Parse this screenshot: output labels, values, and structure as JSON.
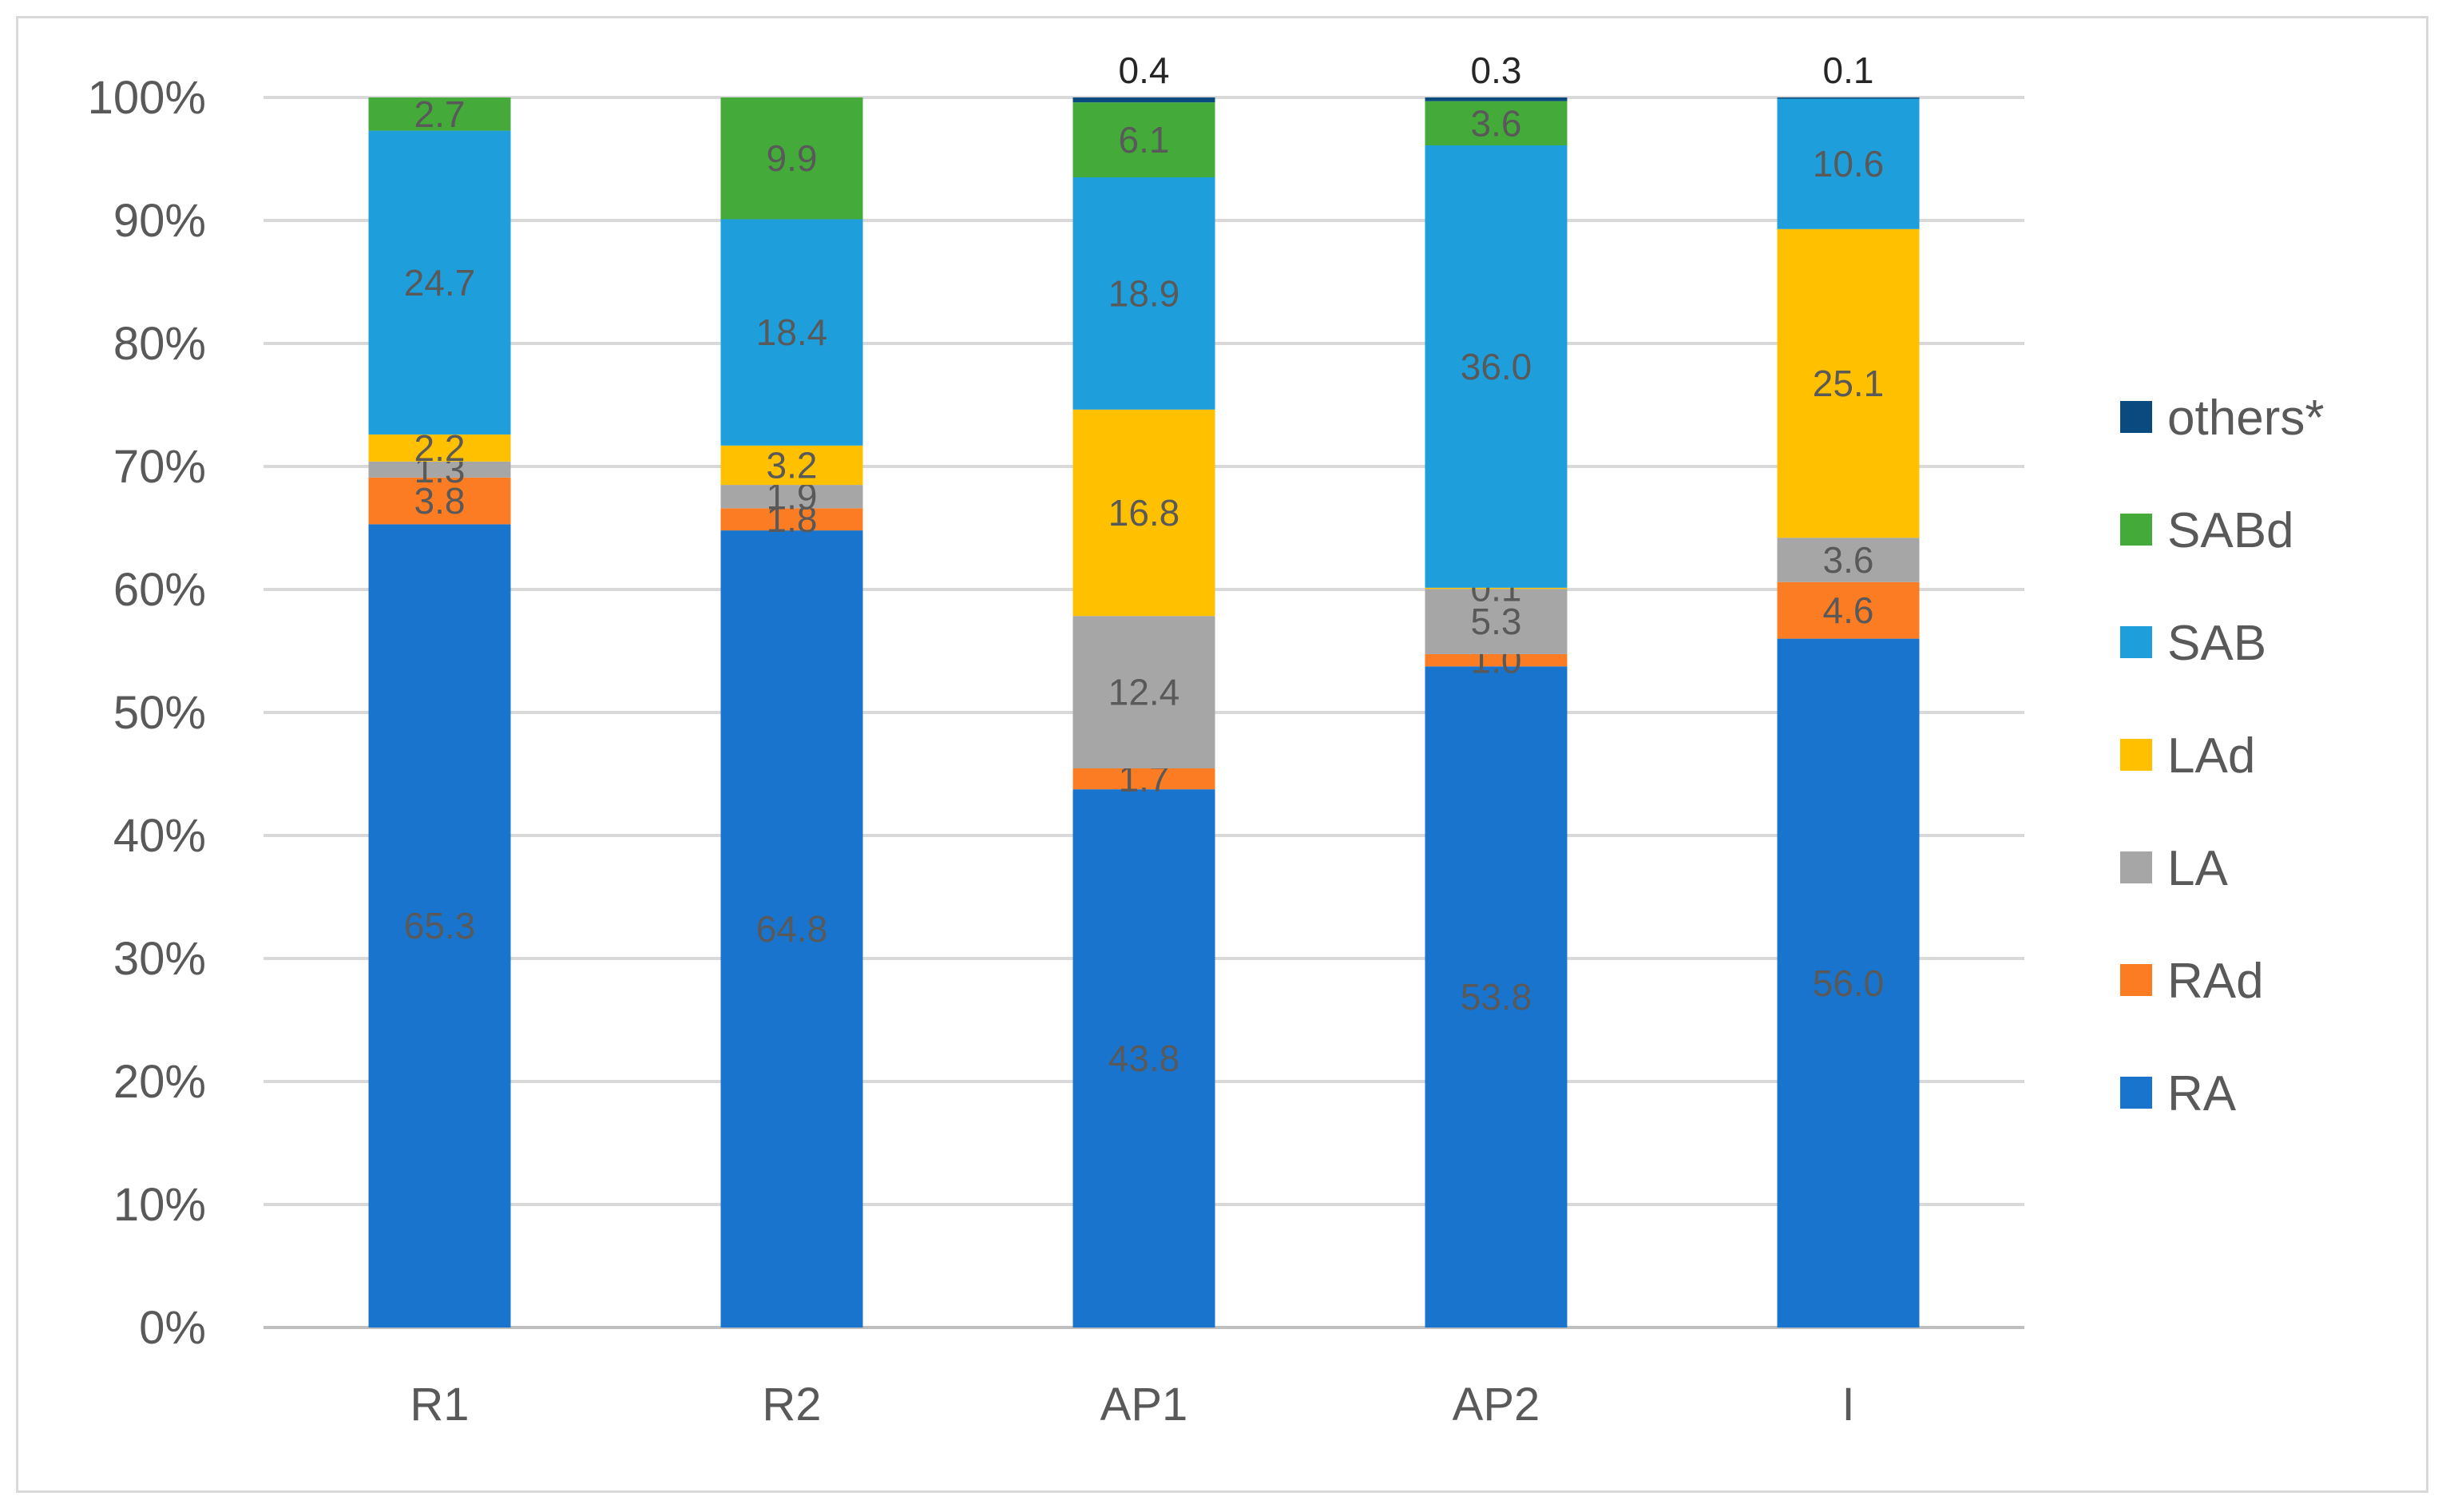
{
  "chart_data": {
    "type": "bar",
    "stacked": "percent",
    "categories": [
      "R1",
      "R2",
      "AP1",
      "AP2",
      "I"
    ],
    "series": [
      {
        "name": "RA",
        "color": "#1874cd",
        "values": [
          65.3,
          64.8,
          43.8,
          53.8,
          56.0
        ]
      },
      {
        "name": "RAd",
        "color": "#fb7c22",
        "values": [
          3.8,
          1.8,
          1.7,
          1.0,
          4.6
        ]
      },
      {
        "name": "LA",
        "color": "#a6a6a6",
        "values": [
          1.3,
          1.9,
          12.4,
          5.3,
          3.6
        ]
      },
      {
        "name": "LAd",
        "color": "#ffc000",
        "values": [
          2.2,
          3.2,
          16.8,
          0.1,
          25.1
        ]
      },
      {
        "name": "SAB",
        "color": "#1e9fdb",
        "values": [
          24.7,
          18.4,
          18.9,
          36.0,
          10.6
        ]
      },
      {
        "name": "SABd",
        "color": "#44ab3b",
        "values": [
          2.7,
          9.9,
          6.1,
          3.6,
          null
        ]
      },
      {
        "name": "others*",
        "color": "#0a4a7e",
        "values": [
          null,
          null,
          0.4,
          0.3,
          0.1
        ]
      }
    ],
    "data_labels": [
      [
        "65.3",
        "64.8",
        "43.8",
        "53.8",
        "56.0"
      ],
      [
        "3.8",
        "1.8",
        "1.7",
        "1.0",
        "4.6"
      ],
      [
        "1.3",
        "1.9",
        "12.4",
        "5.3",
        "3.6"
      ],
      [
        "2.2",
        "3.2",
        "16.8",
        "0.1",
        "25.1"
      ],
      [
        "24.7",
        "18.4",
        "18.9",
        "36.0",
        "10.6"
      ],
      [
        "2.7",
        "9.9",
        "6.1",
        "3.6",
        ""
      ],
      [
        "",
        "",
        "0.4",
        "0.3",
        "0.1"
      ]
    ],
    "y_ticks": [
      "0%",
      "10%",
      "20%",
      "30%",
      "40%",
      "50%",
      "60%",
      "70%",
      "80%",
      "90%",
      "100%"
    ],
    "ylim": [
      0,
      100
    ],
    "grid": true,
    "legend": "right",
    "legend_order": [
      "others*",
      "SABd",
      "SAB",
      "LAd",
      "LA",
      "RAd",
      "RA"
    ]
  }
}
